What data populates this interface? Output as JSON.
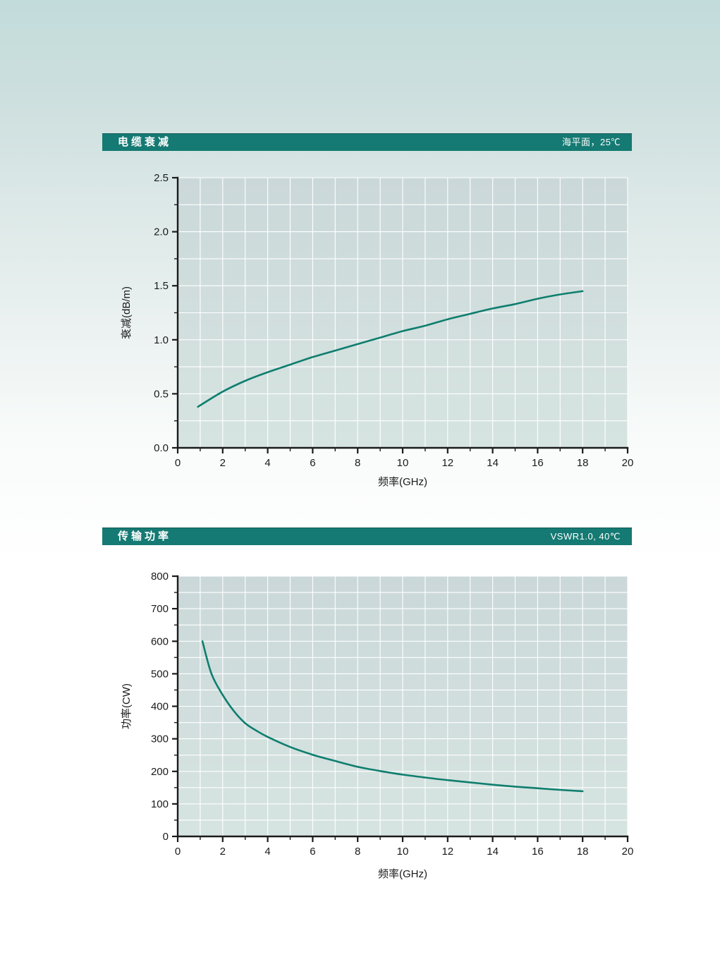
{
  "colors": {
    "header_bg": "#157a73",
    "header_text": "#ffffff",
    "curve": "#0e7e6e",
    "plot_bg_top": "#cbd8d9",
    "plot_bg_bottom": "#d6e4e1",
    "grid": "#ffffff",
    "axis": "#1b1b1b",
    "tick_text": "#1a1a1a"
  },
  "sections": [
    {
      "title": "电缆衰减",
      "condition": "海平面，25℃"
    },
    {
      "title": "传输功率",
      "condition": "VSWR1.0, 40℃"
    }
  ],
  "chart_data": [
    {
      "type": "line",
      "title": "电缆衰减",
      "subtitle": "海平面，25℃",
      "xlabel": "频率(GHz)",
      "ylabel": "衰减(dB/m)",
      "xlim": [
        0,
        20
      ],
      "ylim": [
        0,
        2.5
      ],
      "x_major_tick": 2,
      "x_minor_tick": 1,
      "y_major_tick": 0.5,
      "y_minor_tick": 0.25,
      "y_tick_decimals": 1,
      "grid": {
        "on": true,
        "x_every": 1,
        "y_every": 0.25
      },
      "legend": "none",
      "series": [
        {
          "name": "attenuation",
          "x": [
            0.9,
            2,
            3,
            4,
            5,
            6,
            7,
            8,
            9,
            10,
            11,
            12,
            13,
            14,
            15,
            16,
            17,
            18
          ],
          "y": [
            0.38,
            0.52,
            0.62,
            0.7,
            0.77,
            0.84,
            0.9,
            0.96,
            1.02,
            1.08,
            1.13,
            1.19,
            1.24,
            1.29,
            1.33,
            1.38,
            1.42,
            1.45
          ]
        }
      ]
    },
    {
      "type": "line",
      "title": "传输功率",
      "subtitle": "VSWR1.0, 40℃",
      "xlabel": "频率(GHz)",
      "ylabel": "功率(CW)",
      "xlim": [
        0,
        20
      ],
      "ylim": [
        0,
        800
      ],
      "x_major_tick": 2,
      "x_minor_tick": 1,
      "y_major_tick": 100,
      "y_minor_tick": 50,
      "y_tick_decimals": 0,
      "grid": {
        "on": true,
        "x_every": 1,
        "y_every": 50
      },
      "legend": "none",
      "series": [
        {
          "name": "power",
          "x": [
            1.1,
            1.5,
            2,
            2.5,
            3,
            3.5,
            4,
            5,
            6,
            7,
            8,
            9,
            10,
            11,
            12,
            13,
            14,
            15,
            16,
            17,
            18
          ],
          "y": [
            600,
            500,
            435,
            385,
            348,
            325,
            306,
            275,
            251,
            232,
            214,
            201,
            190,
            181,
            173,
            166,
            159,
            153,
            148,
            143,
            139
          ]
        }
      ]
    }
  ]
}
